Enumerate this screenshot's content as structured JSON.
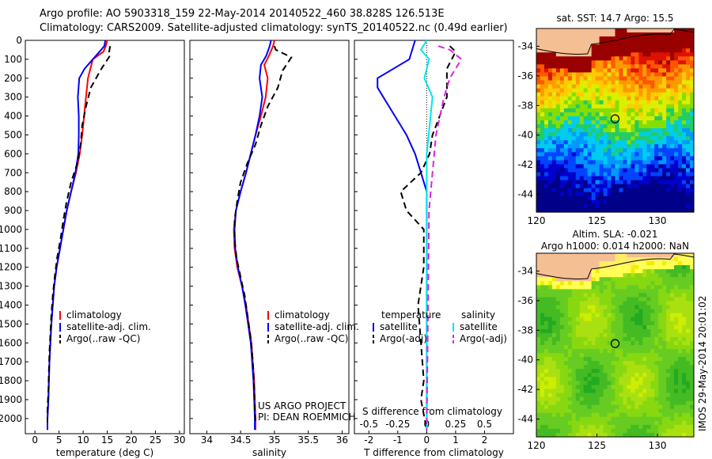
{
  "header": {
    "line1": "Argo profile: AO 5903318_159 22-May-2014 20140522_460 38.828S 126.513E",
    "line2": "Climatology: CARS2009. Satellite-adjusted climatology: synTS_20140522.nc (0.49d earlier)"
  },
  "colors": {
    "climatology": "#ff0000",
    "satellite": "#0000ff",
    "argo": "#000000",
    "sal_satellite": "#00e5ee",
    "sal_argo": "#e020e0"
  },
  "chart_data": [
    {
      "type": "line",
      "name": "temperature",
      "xlabel": "temperature (deg C)",
      "ylabel": "",
      "xlim": [
        -2,
        31
      ],
      "ylim": [
        2080,
        0
      ],
      "xticks": [
        "0",
        "5",
        "10",
        "15",
        "20",
        "25",
        "30"
      ],
      "yticks": [
        "0",
        "100",
        "200",
        "300",
        "400",
        "500",
        "600",
        "700",
        "800",
        "900",
        "1000",
        "1100",
        "1200",
        "1300",
        "1400",
        "1500",
        "1600",
        "1700",
        "1800",
        "1900",
        "2000"
      ],
      "legend": [
        "climatology",
        "satellite-adj. clim.",
        "Argo(..raw -QC)"
      ],
      "legend_position": "lower-right",
      "series": [
        {
          "name": "climatology",
          "style": "solid",
          "color": "#ff0000",
          "points": [
            [
              15.0,
              0
            ],
            [
              14.7,
              30
            ],
            [
              14.2,
              60
            ],
            [
              12.0,
              100
            ],
            [
              11.0,
              200
            ],
            [
              10.6,
              300
            ],
            [
              10.2,
              400
            ],
            [
              9.8,
              500
            ],
            [
              9.3,
              600
            ],
            [
              8.5,
              700
            ],
            [
              7.5,
              800
            ],
            [
              6.6,
              900
            ],
            [
              5.9,
              1000
            ],
            [
              5.2,
              1100
            ],
            [
              4.5,
              1200
            ],
            [
              4.0,
              1300
            ],
            [
              3.7,
              1400
            ],
            [
              3.4,
              1500
            ],
            [
              3.2,
              1600
            ],
            [
              3.0,
              1700
            ],
            [
              2.9,
              1800
            ],
            [
              2.8,
              1900
            ],
            [
              2.6,
              2000
            ],
            [
              2.6,
              2060
            ]
          ]
        },
        {
          "name": "satellite-adj. clim.",
          "style": "solid",
          "color": "#0000ff",
          "points": [
            [
              14.6,
              0
            ],
            [
              14.4,
              30
            ],
            [
              13.4,
              60
            ],
            [
              10.3,
              150
            ],
            [
              9.2,
              200
            ],
            [
              8.9,
              300
            ],
            [
              9.1,
              400
            ],
            [
              9.1,
              500
            ],
            [
              9.0,
              600
            ],
            [
              8.4,
              700
            ],
            [
              7.5,
              800
            ],
            [
              6.6,
              900
            ],
            [
              5.9,
              1000
            ],
            [
              5.2,
              1100
            ],
            [
              4.5,
              1200
            ],
            [
              4.0,
              1300
            ],
            [
              3.7,
              1400
            ],
            [
              3.4,
              1500
            ],
            [
              3.2,
              1600
            ],
            [
              3.0,
              1700
            ],
            [
              2.9,
              1800
            ],
            [
              2.8,
              1900
            ],
            [
              2.6,
              2000
            ],
            [
              2.6,
              2060
            ]
          ]
        },
        {
          "name": "Argo(..raw -QC)",
          "style": "dashed",
          "color": "#000000",
          "points": [
            [
              15.6,
              30
            ],
            [
              15.4,
              60
            ],
            [
              15.6,
              80
            ],
            [
              13.8,
              150
            ],
            [
              11.6,
              250
            ],
            [
              10.6,
              350
            ],
            [
              9.8,
              450
            ],
            [
              9.5,
              550
            ],
            [
              8.8,
              650
            ],
            [
              7.5,
              750
            ],
            [
              6.6,
              850
            ],
            [
              5.9,
              950
            ],
            [
              5.3,
              1050
            ],
            [
              4.6,
              1150
            ],
            [
              4.1,
              1250
            ],
            [
              3.7,
              1350
            ],
            [
              3.4,
              1450
            ],
            [
              3.2,
              1550
            ],
            [
              3.0,
              1650
            ],
            [
              2.9,
              1750
            ],
            [
              2.8,
              1850
            ],
            [
              2.6,
              1950
            ],
            [
              2.6,
              2020
            ]
          ]
        }
      ]
    },
    {
      "type": "line",
      "name": "salinity",
      "xlabel": "salinity",
      "ylabel": "",
      "xlim": [
        33.75,
        36.1
      ],
      "ylim": [
        2080,
        0
      ],
      "xticks": [
        "34",
        "34.5",
        "35",
        "35.5",
        "36"
      ],
      "legend": [
        "climatology",
        "satellite-adj. clim.",
        "Argo(..raw -QC)"
      ],
      "legend_position": "lower-right",
      "annotation": [
        "US ARGO PROJECT",
        "PI: DEAN ROEMMICH"
      ],
      "series": [
        {
          "name": "climatology",
          "style": "solid",
          "color": "#ff0000",
          "points": [
            [
              35.0,
              0
            ],
            [
              34.98,
              30
            ],
            [
              34.92,
              80
            ],
            [
              34.85,
              130
            ],
            [
              34.9,
              200
            ],
            [
              34.87,
              300
            ],
            [
              34.8,
              400
            ],
            [
              34.72,
              500
            ],
            [
              34.65,
              600
            ],
            [
              34.58,
              700
            ],
            [
              34.5,
              800
            ],
            [
              34.43,
              900
            ],
            [
              34.4,
              1000
            ],
            [
              34.41,
              1100
            ],
            [
              34.45,
              1200
            ],
            [
              34.52,
              1300
            ],
            [
              34.58,
              1400
            ],
            [
              34.62,
              1500
            ],
            [
              34.66,
              1600
            ],
            [
              34.68,
              1700
            ],
            [
              34.7,
              1800
            ],
            [
              34.71,
              1900
            ],
            [
              34.72,
              2000
            ],
            [
              34.72,
              2060
            ]
          ]
        },
        {
          "name": "satellite-adj. clim.",
          "style": "solid",
          "color": "#0000ff",
          "points": [
            [
              34.95,
              0
            ],
            [
              34.93,
              30
            ],
            [
              34.88,
              80
            ],
            [
              34.8,
              130
            ],
            [
              34.78,
              200
            ],
            [
              34.82,
              300
            ],
            [
              34.78,
              400
            ],
            [
              34.72,
              500
            ],
            [
              34.65,
              600
            ],
            [
              34.58,
              700
            ],
            [
              34.5,
              800
            ],
            [
              34.43,
              900
            ],
            [
              34.41,
              1000
            ],
            [
              34.42,
              1100
            ],
            [
              34.46,
              1200
            ],
            [
              34.52,
              1300
            ],
            [
              34.57,
              1400
            ],
            [
              34.61,
              1500
            ],
            [
              34.65,
              1600
            ],
            [
              34.67,
              1700
            ],
            [
              34.69,
              1800
            ],
            [
              34.7,
              1900
            ],
            [
              34.71,
              2000
            ],
            [
              34.71,
              2060
            ]
          ]
        },
        {
          "name": "Argo(..raw -QC)",
          "style": "dashed",
          "color": "#000000",
          "points": [
            [
              35.0,
              30
            ],
            [
              35.02,
              50
            ],
            [
              35.25,
              90
            ],
            [
              35.12,
              160
            ],
            [
              35.05,
              250
            ],
            [
              34.9,
              350
            ],
            [
              34.8,
              450
            ],
            [
              34.72,
              550
            ],
            [
              34.6,
              650
            ],
            [
              34.5,
              750
            ],
            [
              34.45,
              850
            ],
            [
              34.41,
              950
            ],
            [
              34.41,
              1050
            ],
            [
              34.44,
              1150
            ],
            [
              34.5,
              1250
            ],
            [
              34.56,
              1350
            ],
            [
              34.6,
              1450
            ],
            [
              34.64,
              1550
            ],
            [
              34.67,
              1650
            ],
            [
              34.69,
              1750
            ],
            [
              34.7,
              1850
            ],
            [
              34.71,
              1950
            ],
            [
              34.72,
              2030
            ]
          ]
        }
      ]
    },
    {
      "type": "line",
      "name": "difference",
      "xlabel": "T difference from climatology",
      "x2label": "S difference from climatology",
      "xlim": [
        -2.5,
        3.0
      ],
      "x2lim": [
        -0.625,
        0.75
      ],
      "ylim": [
        2080,
        0
      ],
      "xticks": [
        "-2",
        "-1",
        "0",
        "1",
        "2"
      ],
      "x2ticks": [
        "-0.5",
        "-0.25",
        "0",
        "0.25",
        "0.5"
      ],
      "legend_groups": [
        {
          "title": "temperature",
          "items": [
            "satellite",
            "Argo(-adj)"
          ]
        },
        {
          "title": "salinity",
          "items": [
            "satellite",
            "Argo(-adj)"
          ]
        }
      ],
      "legend_position": "lower-middle",
      "series": [
        {
          "name": "temperature satellite",
          "axis": "T",
          "style": "solid",
          "color": "#0000ff",
          "points": [
            [
              -0.4,
              0
            ],
            [
              -0.6,
              100
            ],
            [
              -1.7,
              200
            ],
            [
              -1.7,
              250
            ],
            [
              -1.5,
              300
            ],
            [
              -1.1,
              400
            ],
            [
              -0.7,
              500
            ],
            [
              -0.4,
              600
            ],
            [
              -0.2,
              700
            ],
            [
              0,
              800
            ],
            [
              0,
              2060
            ]
          ]
        },
        {
          "name": "temperature Argo(-adj)",
          "axis": "T",
          "style": "dashed",
          "color": "#000000",
          "points": [
            [
              0.8,
              30
            ],
            [
              1.0,
              60
            ],
            [
              0.7,
              150
            ],
            [
              0.7,
              300
            ],
            [
              0.2,
              500
            ],
            [
              0.1,
              600
            ],
            [
              -0.2,
              700
            ],
            [
              -0.9,
              800
            ],
            [
              -0.7,
              900
            ],
            [
              -0.1,
              1000
            ],
            [
              -0.1,
              1200
            ],
            [
              -0.3,
              1400
            ],
            [
              -0.2,
              1600
            ],
            [
              -0.1,
              1800
            ],
            [
              -0.2,
              1900
            ],
            [
              0,
              2060
            ]
          ]
        },
        {
          "name": "salinity satellite",
          "axis": "S",
          "style": "solid",
          "color": "#00e5ee",
          "points": [
            [
              0.0,
              0
            ],
            [
              -0.05,
              50
            ],
            [
              0.02,
              100
            ],
            [
              -0.02,
              200
            ],
            [
              0.05,
              300
            ],
            [
              0.0,
              600
            ],
            [
              0.0,
              2060
            ]
          ]
        },
        {
          "name": "salinity Argo(-adj)",
          "axis": "S",
          "style": "dashed",
          "color": "#e020e0",
          "points": [
            [
              0.1,
              30
            ],
            [
              0.2,
              50
            ],
            [
              0.3,
              100
            ],
            [
              0.2,
              200
            ],
            [
              0.15,
              300
            ],
            [
              0.08,
              500
            ],
            [
              0.05,
              700
            ],
            [
              0.02,
              900
            ],
            [
              0.0,
              2060
            ]
          ]
        }
      ]
    },
    {
      "type": "heatmap",
      "name": "sst-map",
      "title": "sat. SST: 14.7 Argo: 15.5",
      "xlim": [
        120,
        133
      ],
      "ylim": [
        -45.2,
        -32.8
      ],
      "xticks": [
        "120",
        "125",
        "130"
      ],
      "yticks": [
        "-34",
        "-36",
        "-38",
        "-40",
        "-42",
        "-44"
      ],
      "marker": {
        "lon": 126.5,
        "lat": -38.9
      }
    },
    {
      "type": "heatmap",
      "name": "sla-map",
      "title_lines": [
        "Altim. SLA: -0.021",
        "Argo h1000: 0.014 h2000: NaN"
      ],
      "xlim": [
        120,
        133
      ],
      "ylim": [
        -45.2,
        -32.8
      ],
      "xticks": [
        "120",
        "125",
        "130"
      ],
      "yticks": [
        "-34",
        "-36",
        "-38",
        "-40",
        "-42",
        "-44"
      ],
      "marker": {
        "lon": 126.5,
        "lat": -38.9
      }
    }
  ],
  "side_label": "IMOS 29-May-2014 20:01:02"
}
